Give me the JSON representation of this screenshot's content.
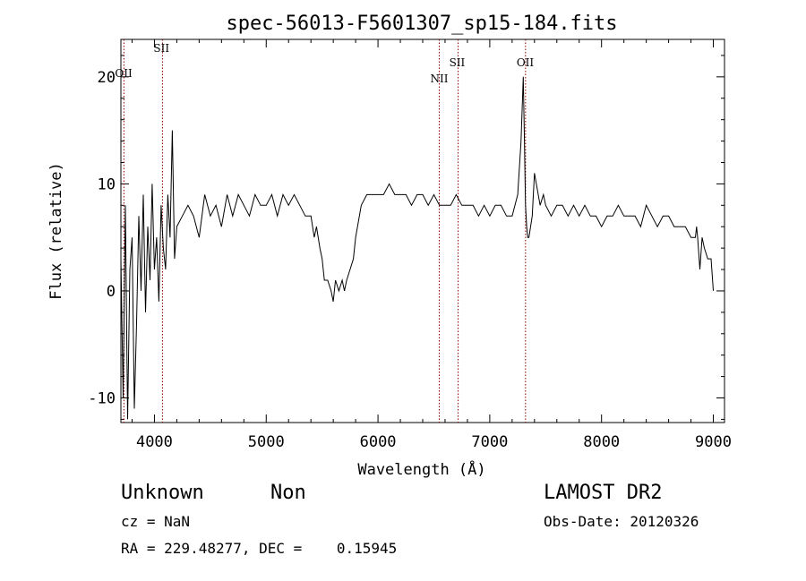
{
  "chart_data": {
    "type": "line",
    "title": "spec-56013-F5601307_sp15-184.fits",
    "xlabel": "Wavelength (Å)",
    "ylabel": "Flux (relative)",
    "xlim": [
      3700,
      9100
    ],
    "ylim": [
      -12.3,
      23.5
    ],
    "xticks": [
      4000,
      5000,
      6000,
      7000,
      8000,
      9000
    ],
    "yticks": [
      -10,
      0,
      10,
      20
    ],
    "grid": false,
    "line_color": "#000000",
    "marker_color": "#8b0000",
    "lines": [
      {
        "label": "OII",
        "wavelength": 3727
      },
      {
        "label": "SII",
        "wavelength": 4072
      },
      {
        "label": "NII",
        "wavelength": 6548
      },
      {
        "label": "SII",
        "wavelength": 6717
      },
      {
        "label": "OII",
        "wavelength": 7320
      }
    ],
    "series": [
      {
        "x": [
          3700,
          3720,
          3740,
          3760,
          3780,
          3800,
          3820,
          3840,
          3860,
          3880,
          3900,
          3920,
          3940,
          3960,
          3980,
          4000,
          4020,
          4040,
          4060,
          4080,
          4100,
          4120,
          4140,
          4160,
          4180,
          4200,
          4250,
          4300,
          4350,
          4400,
          4450,
          4500,
          4550,
          4600,
          4650,
          4700,
          4750,
          4800,
          4850,
          4900,
          4950,
          5000,
          5050,
          5100,
          5150,
          5200,
          5250,
          5300,
          5350,
          5400,
          5430,
          5450,
          5480,
          5500,
          5520,
          5550,
          5580,
          5600,
          5620,
          5650,
          5680,
          5700,
          5720,
          5750,
          5780,
          5800,
          5850,
          5900,
          5950,
          6000,
          6050,
          6100,
          6150,
          6200,
          6250,
          6300,
          6350,
          6400,
          6450,
          6500,
          6550,
          6600,
          6650,
          6700,
          6750,
          6800,
          6850,
          6900,
          6950,
          7000,
          7050,
          7100,
          7150,
          7200,
          7250,
          7280,
          7300,
          7310,
          7320,
          7330,
          7340,
          7350,
          7380,
          7400,
          7450,
          7480,
          7500,
          7550,
          7600,
          7650,
          7700,
          7750,
          7800,
          7850,
          7900,
          7950,
          8000,
          8050,
          8100,
          8150,
          8200,
          8250,
          8300,
          8350,
          8400,
          8450,
          8500,
          8550,
          8600,
          8650,
          8700,
          8750,
          8800,
          8840,
          8850,
          8860,
          8880,
          8900,
          8920,
          8950,
          8980,
          9000
        ],
        "y": [
          3,
          -10,
          8,
          -12,
          2,
          5,
          -11,
          -3,
          7,
          0,
          9,
          -2,
          6,
          1,
          10,
          2,
          5,
          -1,
          8,
          4,
          2,
          9,
          5,
          15,
          3,
          6,
          7,
          8,
          7,
          5,
          9,
          7,
          8,
          6,
          9,
          7,
          9,
          8,
          7,
          9,
          8,
          8,
          9,
          7,
          9,
          8,
          9,
          8,
          7,
          7,
          5,
          6,
          4,
          3,
          1,
          1,
          0,
          -1,
          1,
          0,
          1,
          0,
          1,
          2,
          3,
          5,
          8,
          9,
          9,
          9,
          9,
          10,
          9,
          9,
          9,
          8,
          9,
          9,
          8,
          9,
          8,
          8,
          8,
          9,
          8,
          8,
          8,
          7,
          8,
          7,
          8,
          8,
          7,
          7,
          9,
          14,
          20,
          14,
          8,
          6,
          5,
          5,
          7,
          11,
          8,
          9,
          8,
          7,
          8,
          8,
          7,
          8,
          7,
          8,
          7,
          7,
          6,
          7,
          7,
          8,
          7,
          7,
          7,
          6,
          8,
          7,
          6,
          7,
          7,
          6,
          6,
          6,
          5,
          5,
          6,
          5,
          2,
          5,
          4,
          3,
          3,
          0
        ]
      }
    ],
    "object_class": "Unknown",
    "object_subclass": "Non",
    "survey": "LAMOST DR2",
    "obs_date": "Obs-Date: 20120326",
    "cz": "cz = NaN",
    "coords": "RA = 229.48277, DEC =    0.15945"
  }
}
